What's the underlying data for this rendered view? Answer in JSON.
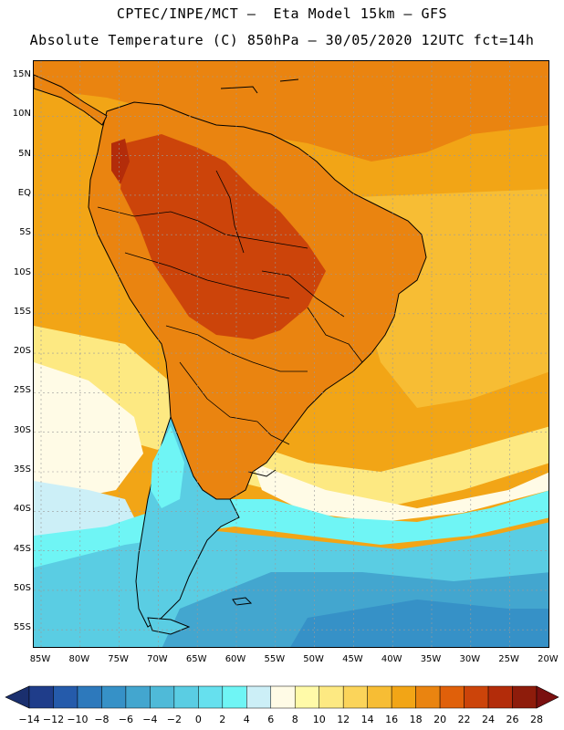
{
  "header": {
    "title_line1": "CPTEC/INPE/MCT –  Eta Model 15km – GFS",
    "title_line2": "Absolute Temperature (C) 850hPa – 30/05/2020 12UTC fct=14h"
  },
  "map": {
    "lat_labels": [
      "15N",
      "10N",
      "5N",
      "EQ",
      "5S",
      "10S",
      "15S",
      "20S",
      "25S",
      "30S",
      "35S",
      "40S",
      "45S",
      "50S",
      "55S"
    ],
    "lon_labels": [
      "85W",
      "80W",
      "75W",
      "70W",
      "65W",
      "60W",
      "55W",
      "50W",
      "45W",
      "40W",
      "35W",
      "30W",
      "25W",
      "20W"
    ],
    "region": "South America",
    "variable": "850hPa temperature"
  },
  "colorbar": {
    "labels": [
      "-14",
      "-12",
      "-10",
      "-8",
      "-6",
      "-4",
      "-2",
      "0",
      "2",
      "4",
      "6",
      "8",
      "10",
      "12",
      "14",
      "16",
      "18",
      "20",
      "22",
      "24",
      "26",
      "28"
    ],
    "colors": [
      "#1f3d8a",
      "#255bab",
      "#2d79bc",
      "#3691c7",
      "#43a6cf",
      "#4fbad8",
      "#5acde3",
      "#66e0ee",
      "#6ff5f5",
      "#cceff7",
      "#fffbe6",
      "#fffaa8",
      "#fde982",
      "#fbd45a",
      "#f7bd34",
      "#f2a516",
      "#ea8410",
      "#e0600a",
      "#cc440a",
      "#b32c0a",
      "#8e1c0b"
    ],
    "low_extend_color": "#1a2f6e",
    "high_extend_color": "#7a1010"
  },
  "colors": {
    "frame": "#000000",
    "grid": "#9a9a9a",
    "warm_ocean": "#f2a516",
    "hot_land": "#e0600a",
    "mid_pale": "#fde982",
    "cold_south": "#5acde3"
  }
}
